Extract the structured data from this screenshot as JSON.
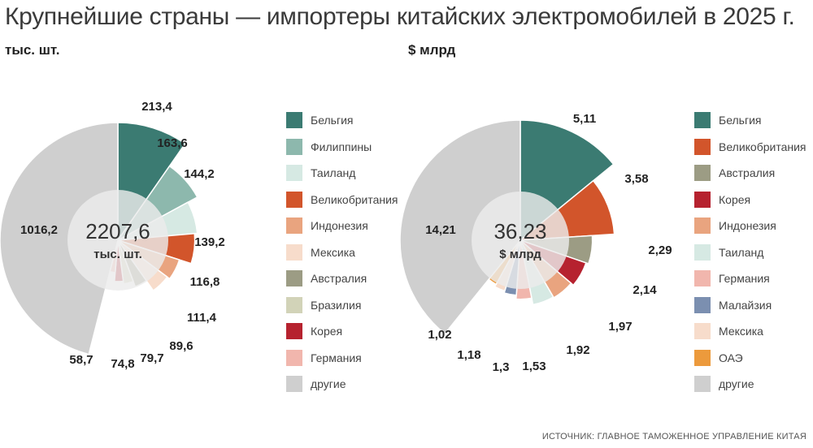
{
  "title": "Крупнейшие страны — импортеры китайских электромобилей в 2025 г.",
  "source": "ИСТОЧНИК: ГЛАВНОЕ ТАМОЖЕННОЕ УПРАВЛЕНИЕ КИТАЯ",
  "chart_data": [
    {
      "type": "pie",
      "unit_label": "тыс. шт.",
      "center_value": "2207,6",
      "center_unit": "тыс. шт.",
      "slices": [
        {
          "label": "Бельгия",
          "value": 213.4,
          "display": "213,4",
          "color": "#3b7b72"
        },
        {
          "label": "Филиппины",
          "value": 163.6,
          "display": "163,6",
          "color": "#8db8ad"
        },
        {
          "label": "Таиланд",
          "value": 144.2,
          "display": "144,2",
          "color": "#d6e9e3"
        },
        {
          "label": "Великобритания",
          "value": 139.2,
          "display": "139,2",
          "color": "#d2552b"
        },
        {
          "label": "Индонезия",
          "value": 116.8,
          "display": "116,8",
          "color": "#e9a47f"
        },
        {
          "label": "Мексика",
          "value": 111.4,
          "display": "111,4",
          "color": "#f7dccb"
        },
        {
          "label": "Австралия",
          "value": 89.6,
          "display": "89,6",
          "color": "#9c9c84"
        },
        {
          "label": "Бразилия",
          "value": 79.7,
          "display": "79,7",
          "color": "#d2d3b8"
        },
        {
          "label": "Корея",
          "value": 74.8,
          "display": "74,8",
          "color": "#b6222f"
        },
        {
          "label": "Германия",
          "value": 58.7,
          "display": "58,7",
          "color": "#f1b6ad"
        },
        {
          "label": "другие",
          "value": 1016.2,
          "display": "1016,2",
          "color": "#cfcfcf"
        }
      ]
    },
    {
      "type": "pie",
      "unit_label": "$ млрд",
      "center_value": "36,23",
      "center_unit": "$ млрд",
      "slices": [
        {
          "label": "Бельгия",
          "value": 5.11,
          "display": "5,11",
          "color": "#3b7b72"
        },
        {
          "label": "Великобритания",
          "value": 3.58,
          "display": "3,58",
          "color": "#d2552b"
        },
        {
          "label": "Австралия",
          "value": 2.29,
          "display": "2,29",
          "color": "#9c9c84"
        },
        {
          "label": "Корея",
          "value": 2.14,
          "display": "2,14",
          "color": "#b6222f"
        },
        {
          "label": "Индонезия",
          "value": 1.97,
          "display": "1,97",
          "color": "#e9a47f"
        },
        {
          "label": "Таиланд",
          "value": 1.92,
          "display": "1,92",
          "color": "#d6e9e3"
        },
        {
          "label": "Германия",
          "value": 1.53,
          "display": "1,53",
          "color": "#f1b6ad"
        },
        {
          "label": "Малайзия",
          "value": 1.3,
          "display": "1,3",
          "color": "#7b8fb0"
        },
        {
          "label": "Мексика",
          "value": 1.18,
          "display": "1,18",
          "color": "#f7dccb"
        },
        {
          "label": "ОАЭ",
          "value": 1.02,
          "display": "1,02",
          "color": "#ec9a3c"
        },
        {
          "label": "другие",
          "value": 14.21,
          "display": "14,21",
          "color": "#cfcfcf"
        }
      ]
    }
  ]
}
